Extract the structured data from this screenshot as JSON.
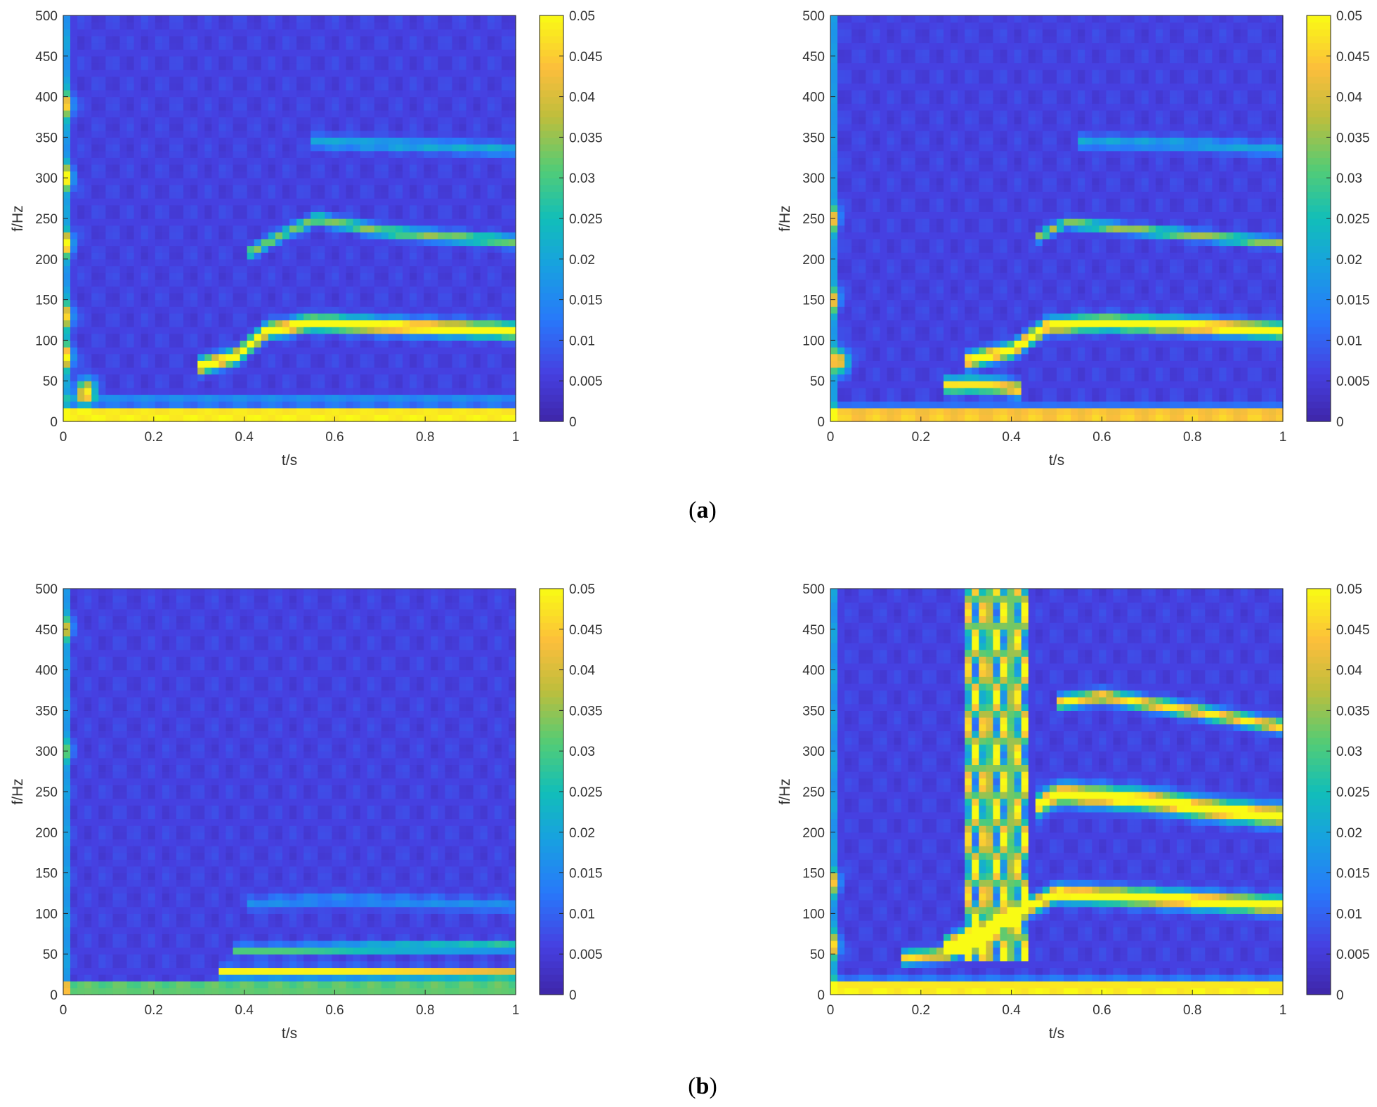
{
  "chart_data": [
    {
      "type": "heatmap",
      "panel": "a",
      "xlabel": "t/s",
      "ylabel": "f/Hz",
      "xlim": [
        0,
        1
      ],
      "ylim": [
        0,
        500
      ],
      "xticks": [
        "0",
        "0.2",
        "0.4",
        "0.6",
        "0.8",
        "1"
      ],
      "yticks": [
        "0",
        "50",
        "100",
        "150",
        "200",
        "250",
        "300",
        "350",
        "400",
        "450",
        "500"
      ],
      "colorbar": {
        "range": [
          0,
          0.05
        ],
        "ticks": [
          "0",
          "0.005",
          "0.01",
          "0.015",
          "0.02",
          "0.025",
          "0.03",
          "0.035",
          "0.04",
          "0.045",
          "0.05"
        ]
      },
      "ridges": [
        {
          "points": [
            [
              0.3,
              68
            ],
            [
              0.38,
              80
            ],
            [
              0.45,
              112
            ],
            [
              0.55,
              122
            ],
            [
              0.7,
              118
            ],
            [
              1.0,
              112
            ]
          ],
          "level": 0.05,
          "width": 9
        },
        {
          "points": [
            [
              0.4,
              205
            ],
            [
              0.5,
              235
            ],
            [
              0.56,
              250
            ],
            [
              0.7,
              235
            ],
            [
              0.8,
              230
            ],
            [
              1.0,
              222
            ]
          ],
          "level": 0.028,
          "width": 7
        },
        {
          "points": [
            [
              0.55,
              345
            ],
            [
              0.8,
              340
            ],
            [
              1.0,
              335
            ]
          ],
          "level": 0.015,
          "width": 8
        }
      ],
      "hotspots": [
        [
          0.0,
          300,
          0.04
        ],
        [
          0.0,
          220,
          0.04
        ],
        [
          0.0,
          390,
          0.035
        ],
        [
          0.0,
          130,
          0.035
        ],
        [
          0.0,
          80,
          0.04
        ],
        [
          0.05,
          38,
          0.045
        ]
      ],
      "lowband": {
        "level": 0.05,
        "top": 30
      }
    },
    {
      "type": "heatmap",
      "panel": "a",
      "xlabel": "t/s",
      "ylabel": "f/Hz",
      "xlim": [
        0,
        1
      ],
      "ylim": [
        0,
        500
      ],
      "xticks": [
        "0",
        "0.2",
        "0.4",
        "0.6",
        "0.8",
        "1"
      ],
      "yticks": [
        "0",
        "50",
        "100",
        "150",
        "200",
        "250",
        "300",
        "350",
        "400",
        "450",
        "500"
      ],
      "colorbar": {
        "range": [
          0,
          0.05
        ],
        "ticks": [
          "0",
          "0.005",
          "0.01",
          "0.015",
          "0.02",
          "0.025",
          "0.03",
          "0.035",
          "0.04",
          "0.045",
          "0.05"
        ]
      },
      "ridges": [
        {
          "points": [
            [
              0.3,
              75
            ],
            [
              0.4,
              88
            ],
            [
              0.48,
              118
            ],
            [
              0.6,
              122
            ],
            [
              0.8,
              118
            ],
            [
              1.0,
              112
            ]
          ],
          "level": 0.05,
          "width": 9
        },
        {
          "points": [
            [
              0.25,
              45
            ],
            [
              0.35,
              45
            ],
            [
              0.42,
              40
            ]
          ],
          "level": 0.042,
          "width": 9
        },
        {
          "points": [
            [
              0.45,
              225
            ],
            [
              0.52,
              245
            ],
            [
              0.7,
              235
            ],
            [
              1.0,
              220
            ]
          ],
          "level": 0.03,
          "width": 6
        },
        {
          "points": [
            [
              0.55,
              345
            ],
            [
              0.8,
              342
            ],
            [
              1.0,
              335
            ]
          ],
          "level": 0.014,
          "width": 8
        }
      ],
      "hotspots": [
        [
          0.0,
          250,
          0.03
        ],
        [
          0.0,
          150,
          0.03
        ],
        [
          0.02,
          75,
          0.04
        ]
      ],
      "lowband": {
        "level": 0.045,
        "top": 25
      }
    },
    {
      "type": "heatmap",
      "panel": "b",
      "xlabel": "t/s",
      "ylabel": "f/Hz",
      "xlim": [
        0,
        1
      ],
      "ylim": [
        0,
        500
      ],
      "xticks": [
        "0",
        "0.2",
        "0.4",
        "0.6",
        "0.8",
        "1"
      ],
      "yticks": [
        "0",
        "50",
        "100",
        "150",
        "200",
        "250",
        "300",
        "350",
        "400",
        "450",
        "500"
      ],
      "colorbar": {
        "range": [
          0,
          0.05
        ],
        "ticks": [
          "0",
          "0.005",
          "0.01",
          "0.015",
          "0.02",
          "0.025",
          "0.03",
          "0.035",
          "0.04",
          "0.045",
          "0.05"
        ]
      },
      "ridges": [
        {
          "points": [
            [
              0.35,
              28
            ],
            [
              0.6,
              28
            ],
            [
              1.0,
              26
            ]
          ],
          "level": 0.045,
          "width": 6
        },
        {
          "points": [
            [
              0.38,
              55
            ],
            [
              0.48,
              55
            ],
            [
              0.7,
              58
            ],
            [
              1.0,
              60
            ]
          ],
          "level": 0.025,
          "width": 6
        },
        {
          "points": [
            [
              0.4,
              112
            ],
            [
              0.6,
              118
            ],
            [
              1.0,
              110
            ]
          ],
          "level": 0.01,
          "width": 8
        }
      ],
      "hotspots": [
        [
          0.0,
          450,
          0.025
        ],
        [
          0.0,
          300,
          0.015
        ]
      ],
      "lowband": {
        "level": 0.03,
        "top": 20
      }
    },
    {
      "type": "heatmap",
      "panel": "b",
      "xlabel": "t/s",
      "ylabel": "f/Hz",
      "xlim": [
        0,
        1
      ],
      "ylim": [
        0,
        500
      ],
      "xticks": [
        "0",
        "0.2",
        "0.4",
        "0.6",
        "0.8",
        "1"
      ],
      "yticks": [
        "0",
        "50",
        "100",
        "150",
        "200",
        "250",
        "300",
        "350",
        "400",
        "450",
        "500"
      ],
      "colorbar": {
        "range": [
          0,
          0.05
        ],
        "ticks": [
          "0",
          "0.005",
          "0.01",
          "0.015",
          "0.02",
          "0.025",
          "0.03",
          "0.035",
          "0.04",
          "0.045",
          "0.05"
        ]
      },
      "ridges": [
        {
          "points": [
            [
              0.25,
              60
            ],
            [
              0.35,
              80
            ],
            [
              0.45,
              112
            ],
            [
              0.5,
              125
            ],
            [
              0.7,
              120
            ],
            [
              1.0,
              110
            ]
          ],
          "level": 0.05,
          "width": 10
        },
        {
          "points": [
            [
              0.45,
              230
            ],
            [
              0.5,
              248
            ],
            [
              0.7,
              240
            ],
            [
              0.85,
              228
            ],
            [
              1.0,
              220
            ]
          ],
          "level": 0.05,
          "width": 12
        },
        {
          "points": [
            [
              0.5,
              360
            ],
            [
              0.6,
              368
            ],
            [
              0.8,
              350
            ],
            [
              1.0,
              330
            ]
          ],
          "level": 0.042,
          "width": 8
        },
        {
          "points": [
            [
              0.15,
              45
            ],
            [
              0.25,
              50
            ],
            [
              0.35,
              65
            ]
          ],
          "level": 0.04,
          "width": 8
        }
      ],
      "burst": {
        "x": [
          0.3,
          0.44
        ],
        "level": 0.05
      },
      "hotspots": [
        [
          0.0,
          140,
          0.03
        ],
        [
          0.0,
          60,
          0.035
        ]
      ],
      "lowband": {
        "level": 0.05,
        "top": 25
      }
    }
  ],
  "captions": {
    "a": "a",
    "b": "b"
  }
}
